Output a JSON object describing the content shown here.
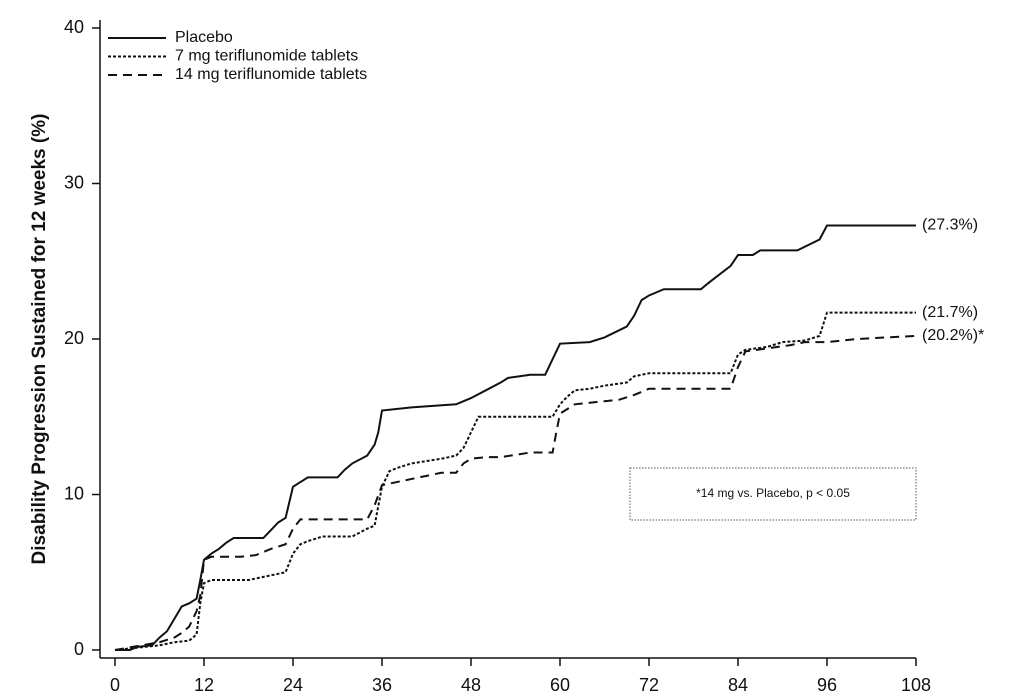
{
  "chart_data": {
    "type": "line",
    "y_label": "Disability Progression Sustained for 12 weeks (%)",
    "xlim": [
      0,
      108
    ],
    "xticks": [
      0,
      12,
      24,
      36,
      48,
      60,
      72,
      84,
      96,
      108
    ],
    "ylim": [
      0,
      40
    ],
    "yticks": [
      0,
      10,
      20,
      30,
      40
    ],
    "legend": "top-left",
    "series": [
      {
        "name": "Placebo",
        "color": "#111111",
        "linestyle": "solid",
        "end_label": "(27.3%)",
        "x": [
          0,
          2,
          3,
          5,
          6,
          7,
          8,
          9,
          10,
          11,
          11.5,
          12,
          13,
          14,
          15,
          16,
          20,
          21,
          22,
          23,
          23.5,
          24,
          25,
          26,
          30,
          31,
          32,
          34,
          35,
          35.5,
          36,
          40,
          46,
          48,
          50,
          52,
          53,
          56,
          58,
          59,
          60,
          64,
          66,
          69,
          70,
          71,
          72,
          74,
          79,
          80,
          83,
          84,
          86,
          87,
          92,
          95,
          96,
          108
        ],
        "values": [
          0,
          0,
          0.2,
          0.3,
          0.8,
          1.2,
          2,
          2.8,
          3,
          3.3,
          4.5,
          5.8,
          6.2,
          6.5,
          6.9,
          7.2,
          7.2,
          7.7,
          8.2,
          8.5,
          9.5,
          10.5,
          10.8,
          11.1,
          11.1,
          11.6,
          12,
          12.5,
          13.2,
          14,
          15.4,
          15.6,
          15.8,
          16.2,
          16.7,
          17.2,
          17.5,
          17.7,
          17.7,
          18.7,
          19.7,
          19.8,
          20.1,
          20.8,
          21.5,
          22.5,
          22.8,
          23.2,
          23.2,
          23.6,
          24.7,
          25.4,
          25.4,
          25.7,
          25.7,
          26.4,
          27.3,
          27.3
        ]
      },
      {
        "name": "7 mg teriflunomide tablets",
        "color": "#111111",
        "linestyle": "dotted",
        "end_label": "(21.7%)",
        "x": [
          0,
          6,
          8,
          10,
          11,
          11.5,
          12,
          13,
          18,
          19,
          21,
          23,
          24,
          25,
          26,
          28,
          32,
          34,
          35,
          36,
          37,
          38,
          40,
          44,
          46,
          47,
          48,
          49,
          59,
          60,
          61,
          62,
          64,
          66,
          69,
          70,
          72,
          83,
          84,
          85,
          88,
          90,
          93,
          95,
          96,
          108
        ],
        "values": [
          0,
          0.3,
          0.5,
          0.6,
          1,
          3,
          4.3,
          4.5,
          4.5,
          4.6,
          4.8,
          5,
          6.2,
          6.8,
          7,
          7.3,
          7.3,
          7.8,
          8,
          10.5,
          11.5,
          11.7,
          12,
          12.3,
          12.5,
          13,
          14,
          15,
          15,
          15.8,
          16.3,
          16.7,
          16.8,
          17,
          17.2,
          17.6,
          17.8,
          17.8,
          19,
          19.3,
          19.5,
          19.8,
          19.9,
          20.2,
          21.7,
          21.7
        ]
      },
      {
        "name": "14 mg teriflunomide tablets",
        "color": "#111111",
        "linestyle": "dashed",
        "end_label": "(20.2%)*",
        "x": [
          0,
          6,
          8,
          9,
          10,
          11,
          11.5,
          12,
          13,
          17,
          19,
          21,
          23,
          24,
          25,
          34,
          35,
          36,
          40,
          42,
          44,
          46,
          47,
          48,
          50,
          52,
          56,
          59,
          59.5,
          60,
          62,
          64,
          66,
          68,
          70,
          72,
          83,
          84,
          85,
          88,
          91,
          93,
          96,
          100,
          108
        ],
        "values": [
          0,
          0.5,
          0.8,
          1.1,
          1.5,
          2.5,
          3.5,
          5.8,
          6,
          6,
          6.1,
          6.5,
          6.8,
          7.8,
          8.4,
          8.4,
          9.3,
          10.6,
          11,
          11.2,
          11.4,
          11.4,
          12,
          12.3,
          12.4,
          12.4,
          12.7,
          12.7,
          14,
          15.2,
          15.8,
          15.9,
          16,
          16.1,
          16.4,
          16.8,
          16.8,
          18.2,
          19.2,
          19.4,
          19.6,
          19.8,
          19.8,
          20,
          20.2
        ]
      }
    ],
    "annotation": "*14 mg vs. Placebo, p < 0.05"
  }
}
